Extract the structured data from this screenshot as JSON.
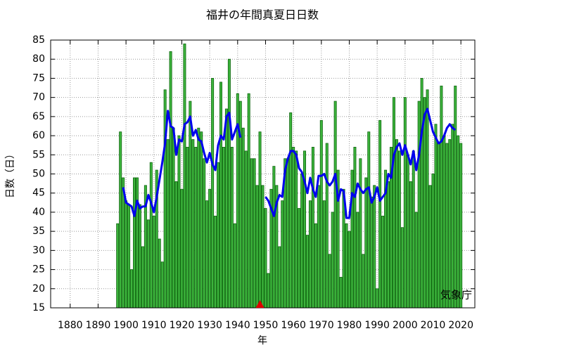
{
  "chart_data": {
    "type": "bar",
    "title": "福井の年間真夏日日数",
    "xlabel": "年",
    "ylabel": "日数（日）",
    "annotation": "気象庁",
    "x": [
      1897,
      1898,
      1899,
      1900,
      1901,
      1902,
      1903,
      1904,
      1905,
      1906,
      1907,
      1908,
      1909,
      1910,
      1911,
      1912,
      1913,
      1914,
      1915,
      1916,
      1917,
      1918,
      1919,
      1920,
      1921,
      1922,
      1923,
      1924,
      1925,
      1926,
      1927,
      1928,
      1929,
      1930,
      1931,
      1932,
      1933,
      1934,
      1935,
      1936,
      1937,
      1938,
      1939,
      1940,
      1941,
      1942,
      1943,
      1944,
      1945,
      1946,
      1947,
      1948,
      1949,
      1950,
      1951,
      1952,
      1953,
      1954,
      1955,
      1956,
      1957,
      1958,
      1959,
      1960,
      1961,
      1962,
      1963,
      1964,
      1965,
      1966,
      1967,
      1968,
      1969,
      1970,
      1971,
      1972,
      1973,
      1974,
      1975,
      1976,
      1977,
      1978,
      1979,
      1980,
      1981,
      1982,
      1983,
      1984,
      1985,
      1986,
      1987,
      1988,
      1989,
      1990,
      1991,
      1992,
      1993,
      1994,
      1995,
      1996,
      1997,
      1998,
      1999,
      2000,
      2001,
      2002,
      2003,
      2004,
      2005,
      2006,
      2007,
      2008,
      2009,
      2010,
      2011,
      2012,
      2013,
      2014,
      2015,
      2016,
      2017,
      2018,
      2019,
      2020
    ],
    "series": [
      {
        "type": "bar",
        "color": "#3cb43c",
        "values": [
          37,
          61,
          49,
          43,
          42,
          25,
          49,
          49,
          42,
          31,
          47,
          38,
          53,
          39,
          51,
          33,
          27,
          72,
          59,
          82,
          62,
          48,
          60,
          46,
          84,
          57,
          69,
          59,
          57,
          62,
          61,
          54,
          43,
          46,
          75,
          39,
          53,
          74,
          57,
          67,
          80,
          57,
          37,
          71,
          69,
          62,
          56,
          71,
          54,
          54,
          47,
          61,
          47,
          41,
          24,
          46,
          52,
          47,
          31,
          43,
          54,
          54,
          66,
          57,
          56,
          41,
          50,
          56,
          34,
          43,
          57,
          37,
          47,
          64,
          43,
          58,
          29,
          40,
          69,
          51,
          23,
          46,
          37,
          35,
          51,
          57,
          40,
          54,
          29,
          49,
          61,
          44,
          47,
          20,
          64,
          39,
          51,
          48,
          57,
          70,
          59,
          56,
          36,
          70,
          55,
          48,
          56,
          40,
          69,
          75,
          70,
          72,
          47,
          50,
          63,
          58,
          73,
          60,
          58,
          59,
          63,
          73,
          60,
          58
        ]
      },
      {
        "type": "line",
        "color": "#0000ee",
        "values": [
          null,
          null,
          46.5,
          42.5,
          42,
          41.5,
          39,
          43,
          41,
          41.5,
          41.5,
          44.5,
          42.5,
          40,
          44,
          48.5,
          53,
          58,
          66.5,
          62.5,
          62,
          55,
          59,
          58.5,
          63,
          63.5,
          65,
          60,
          61.5,
          59,
          58.5,
          55.5,
          53,
          55.5,
          52.5,
          51,
          57.5,
          60,
          59,
          65,
          66,
          59,
          61,
          63,
          59.5,
          null,
          null,
          null,
          null,
          null,
          null,
          null,
          null,
          44,
          43,
          41,
          39,
          42.5,
          44.5,
          44,
          51,
          54,
          56,
          56,
          55,
          51.5,
          50.5,
          48,
          45,
          49,
          46,
          44,
          49.5,
          49.5,
          50,
          48,
          47,
          48,
          50,
          43,
          46,
          45.5,
          38.5,
          38.5,
          45,
          44,
          47.5,
          46,
          45,
          46,
          46.5,
          42.5,
          44,
          46.5,
          43,
          44,
          45,
          50,
          49,
          55,
          57,
          58,
          55,
          57.5,
          55,
          52.5,
          56,
          51,
          55,
          61,
          65.5,
          67,
          64,
          61,
          59.5,
          58,
          58.5,
          60,
          62,
          63,
          62,
          61.5,
          null,
          null
        ]
      }
    ],
    "marker": {
      "x": 1948,
      "color": "#dd0000"
    },
    "xlim": [
      1873,
      2025
    ],
    "xticks": [
      1880,
      1890,
      1900,
      1910,
      1920,
      1930,
      1940,
      1950,
      1960,
      1970,
      1980,
      1990,
      2000,
      2010,
      2020
    ],
    "ylim": [
      15,
      85
    ],
    "yticks": [
      15,
      20,
      25,
      30,
      35,
      40,
      45,
      50,
      55,
      60,
      65,
      70,
      75,
      80,
      85
    ],
    "grid": true
  }
}
